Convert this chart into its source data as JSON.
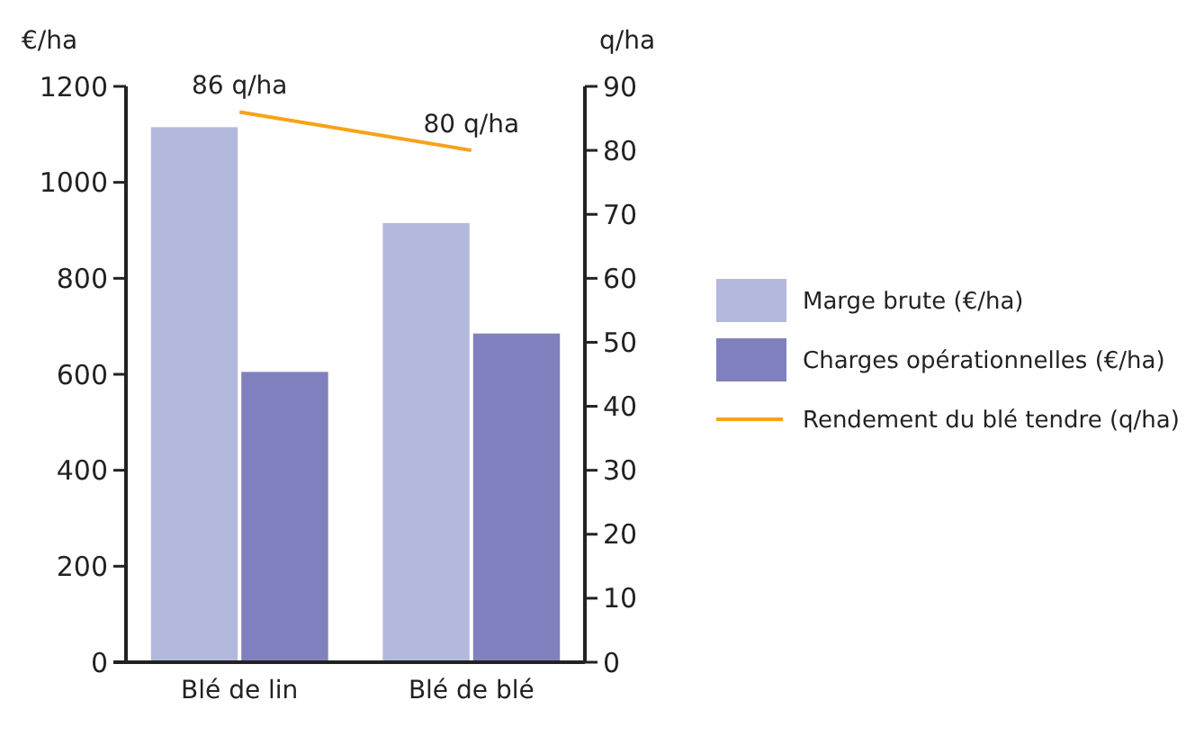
{
  "chart_data": {
    "type": "bar",
    "ylabel": "€/ha",
    "y2label": "q/ha",
    "categories": [
      "Blé de lin",
      "Blé de blé"
    ],
    "series": [
      {
        "name": "Marge brute (€/ha)",
        "color": "#b3b9dd",
        "values": [
          1115,
          915
        ]
      },
      {
        "name": "Charges opérationnelles (€/ha)",
        "color": "#8180be",
        "values": [
          605,
          685
        ]
      },
      {
        "name": "Rendement du blé tendre (q/ha)",
        "type": "line",
        "axis": "y2",
        "color": "#f7a21b",
        "values": [
          86,
          80
        ],
        "value_labels": [
          "86 q/ha",
          "80 q/ha"
        ]
      }
    ],
    "ylim": [
      0,
      1200
    ],
    "yticks": [
      0,
      200,
      400,
      600,
      800,
      1000,
      1200
    ],
    "y2lim": [
      0,
      90
    ],
    "y2ticks": [
      0,
      10,
      20,
      30,
      40,
      50,
      60,
      70,
      80,
      90
    ],
    "grid": false,
    "legend": "right",
    "marker": "none"
  }
}
